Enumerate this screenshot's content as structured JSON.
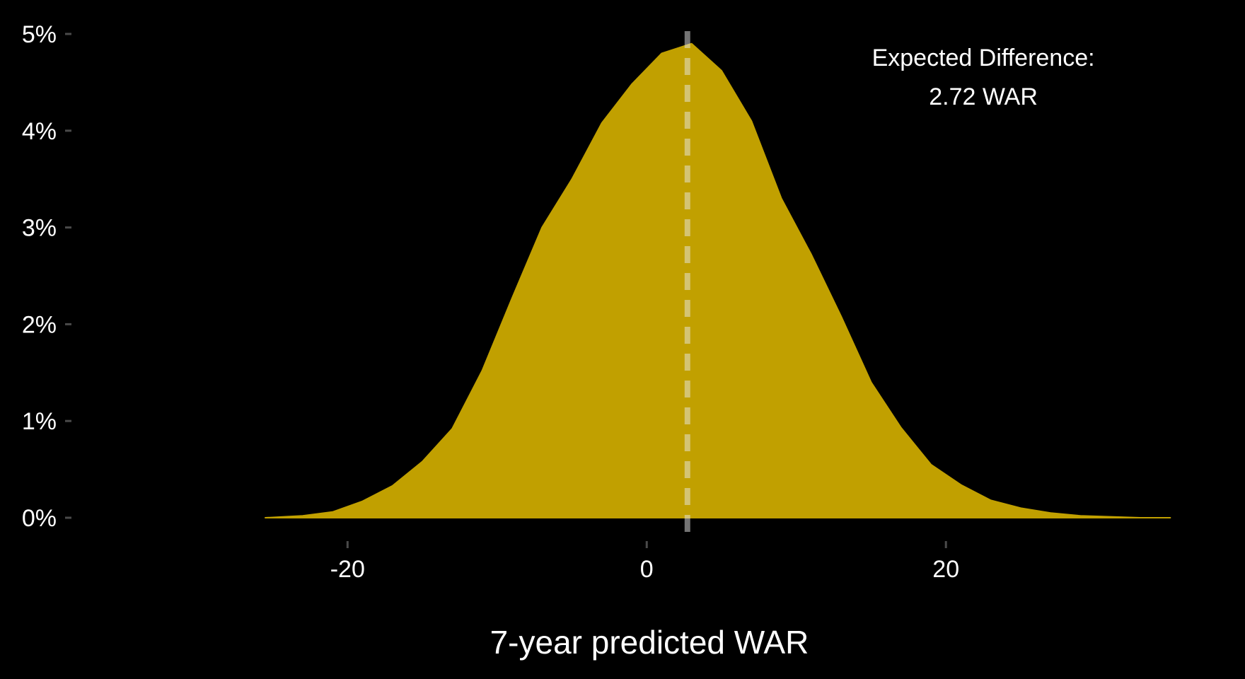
{
  "chart_data": {
    "type": "area",
    "title": "",
    "xlabel": "7-year predicted WAR",
    "ylabel": "",
    "xlim": [
      -25.5,
      35.5
    ],
    "ylim": [
      0,
      0.05
    ],
    "x_ticks": [
      {
        "value": -20,
        "label": "-20"
      },
      {
        "value": 0,
        "label": "0"
      },
      {
        "value": 20,
        "label": "20"
      }
    ],
    "y_ticks": [
      {
        "value": 0.0,
        "label": "0%"
      },
      {
        "value": 0.01,
        "label": "1%"
      },
      {
        "value": 0.02,
        "label": "2%"
      },
      {
        "value": 0.03,
        "label": "3%"
      },
      {
        "value": 0.04,
        "label": "4%"
      },
      {
        "value": 0.05,
        "label": "5%"
      }
    ],
    "grid": false,
    "legend": "none",
    "fill_color": "#C1A000",
    "mean_line_color": "#E8E8E8",
    "series": [
      {
        "x": [
          -25.5,
          -23,
          -21,
          -19,
          -17,
          -15,
          -13,
          -11,
          -9,
          -7,
          -5,
          -3,
          -1,
          1,
          3,
          5,
          7,
          9,
          11,
          13,
          15,
          17,
          19,
          21,
          23,
          25,
          27,
          29,
          31,
          33,
          35
        ],
        "values": [
          0.0,
          0.0002,
          0.0006,
          0.0017,
          0.0033,
          0.0058,
          0.0092,
          0.0152,
          0.0227,
          0.03,
          0.035,
          0.0408,
          0.0448,
          0.048,
          0.049,
          0.0462,
          0.041,
          0.033,
          0.0272,
          0.0208,
          0.014,
          0.0093,
          0.0055,
          0.0034,
          0.0018,
          0.001,
          0.0005,
          0.0002,
          0.0001,
          0.0,
          0.0
        ]
      }
    ],
    "mean_line": {
      "x": 2.72,
      "style": "dashed"
    },
    "annotation": {
      "line1": "Expected Difference:",
      "line2": "2.72 WAR",
      "x": 22.5,
      "y": 0.0467
    }
  }
}
